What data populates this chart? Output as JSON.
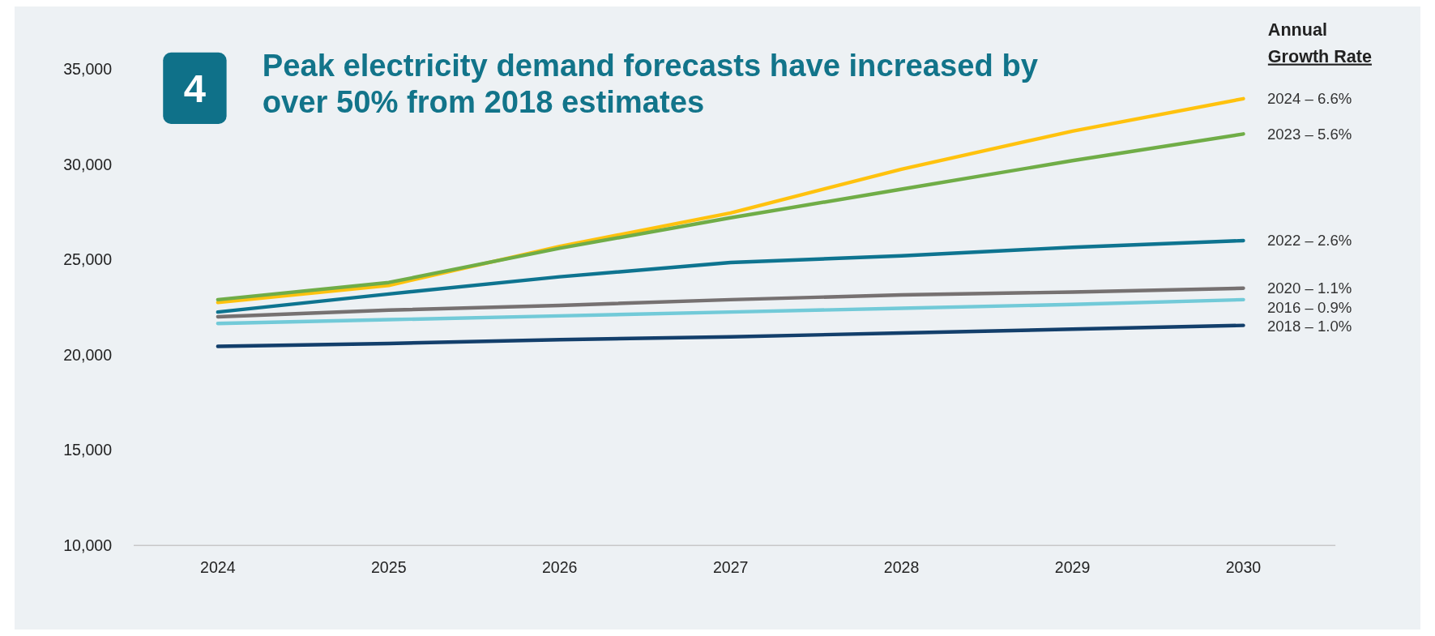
{
  "chart_data": {
    "type": "line",
    "title": "Peak electricity demand forecasts have increased by over 50% from 2018 estimates",
    "annotations": [
      "4"
    ],
    "legend_title": "Annual Growth Rate",
    "categories": [
      "2024",
      "2025",
      "2026",
      "2027",
      "2028",
      "2029",
      "2030"
    ],
    "ylim": [
      10000,
      35000
    ],
    "yticks": [
      {
        "value": 10000,
        "label": "10,000"
      },
      {
        "value": 15000,
        "label": "15,000"
      },
      {
        "value": 20000,
        "label": "20,000"
      },
      {
        "value": 25000,
        "label": "25,000"
      },
      {
        "value": 30000,
        "label": "30,000"
      },
      {
        "value": 35000,
        "label": "35,000"
      }
    ],
    "series": [
      {
        "name": "2024 – 6.6%",
        "color": "#ffc20e",
        "values": [
          22750,
          23650,
          25700,
          27450,
          29750,
          31750,
          33450
        ]
      },
      {
        "name": "2023 – 5.6%",
        "color": "#70ad47",
        "values": [
          22900,
          23800,
          25600,
          27200,
          28700,
          30200,
          31600
        ]
      },
      {
        "name": "2022 – 2.6%",
        "color": "#0e7490",
        "values": [
          22250,
          23200,
          24100,
          24850,
          25200,
          25650,
          26000
        ]
      },
      {
        "name": "2020 – 1.1%",
        "color": "#767171",
        "values": [
          22000,
          22350,
          22600,
          22900,
          23150,
          23300,
          23500
        ]
      },
      {
        "name": "2016 – 0.9%",
        "color": "#72cad8",
        "values": [
          21650,
          21850,
          22050,
          22250,
          22450,
          22650,
          22900
        ]
      },
      {
        "name": "2018 – 1.0%",
        "color": "#133f6b",
        "values": [
          20450,
          20600,
          20800,
          20950,
          21150,
          21350,
          21550
        ]
      }
    ]
  }
}
